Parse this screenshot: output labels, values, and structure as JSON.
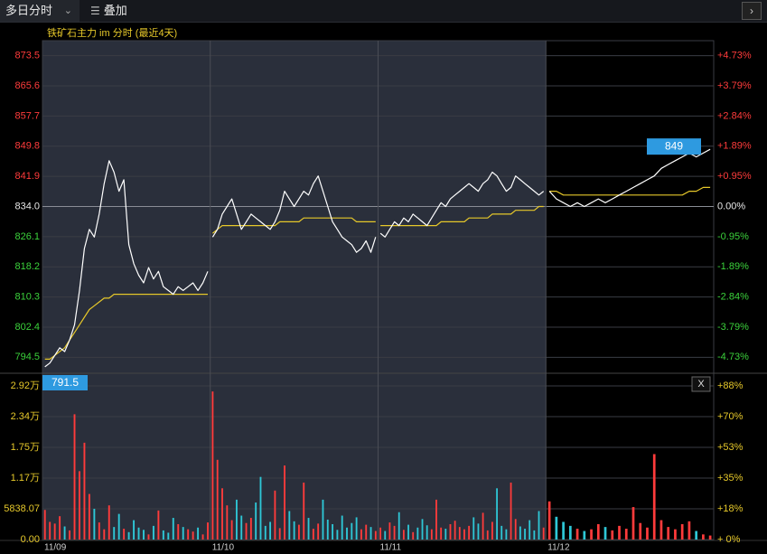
{
  "toolbar": {
    "view_mode": "多日分时",
    "overlay_label": "叠加"
  },
  "colors": {
    "up": "#ff3b3b",
    "down": "#3bd23b",
    "price_line": "#ffffff",
    "avg_line": "#e6c82a",
    "highlight_bg": "#2a2f3b",
    "badge": "#2e9ae0"
  },
  "chart_data": {
    "type": "line",
    "title": "铁矿石主力 im 分时 (最近4天)",
    "reference_price": 834.0,
    "current_price_label": "849",
    "low_price_label": "791.5",
    "close_button_label": "X",
    "price_axis": {
      "ylim": [
        790.55,
        877.45
      ],
      "left_ticks": [
        "873.5",
        "865.6",
        "857.7",
        "849.8",
        "841.9",
        "834.0",
        "826.1",
        "818.2",
        "810.3",
        "802.4",
        "794.5"
      ],
      "right_ticks": [
        "+4.73%",
        "+3.79%",
        "+2.84%",
        "+1.89%",
        "+0.95%",
        "0.00%",
        "-0.95%",
        "-1.89%",
        "-2.84%",
        "-3.79%",
        "-4.73%"
      ]
    },
    "volume_axis": {
      "ylim": [
        0,
        29200
      ],
      "left_ticks": [
        "2.92万",
        "2.34万",
        "1.75万",
        "1.17万",
        "5838.07",
        "0.00"
      ],
      "right_ticks": [
        "+88%",
        "+70%",
        "+53%",
        "+35%",
        "+18%",
        "+ 0%"
      ]
    },
    "days": [
      "11/09",
      "11/10",
      "11/11",
      "11/12"
    ],
    "series": [
      {
        "values": [
          [
            792,
            793,
            795,
            797,
            796,
            799,
            803,
            812,
            823,
            828,
            826,
            832,
            840,
            846,
            843,
            838,
            841,
            824,
            819,
            816,
            814,
            818,
            815,
            817,
            813,
            812,
            811,
            813,
            812,
            813,
            814,
            812,
            814,
            817
          ],
          [
            826,
            828,
            832,
            834,
            836,
            832,
            828,
            830,
            832,
            831,
            830,
            829,
            828,
            830,
            833,
            838,
            836,
            834,
            836,
            838,
            837,
            840,
            842,
            838,
            834,
            830,
            828,
            826,
            825,
            824,
            822,
            823,
            825,
            822,
            826
          ],
          [
            827,
            826,
            828,
            830,
            829,
            831,
            830,
            832,
            831,
            830,
            829,
            831,
            833,
            835,
            834,
            836,
            837,
            838,
            839,
            840,
            839,
            838,
            840,
            841,
            843,
            842,
            840,
            838,
            839,
            842,
            841,
            840,
            839,
            838,
            837,
            838
          ],
          [
            838,
            836,
            835,
            834,
            835,
            834,
            835,
            836,
            835,
            836,
            837,
            838,
            839,
            840,
            841,
            842,
            844,
            845,
            846,
            847,
            848,
            847,
            848,
            849
          ]
        ]
      },
      {
        "values": [
          [
            794,
            794,
            795,
            796,
            797,
            799,
            801,
            803,
            805,
            807,
            808,
            809,
            810,
            810,
            811,
            811,
            811,
            811,
            811,
            811,
            811,
            811,
            811,
            811,
            811,
            811,
            811,
            811,
            811,
            811,
            811,
            811,
            811,
            811
          ],
          [
            827,
            828,
            829,
            829,
            829,
            829,
            829,
            829,
            829,
            829,
            829,
            829,
            829,
            829,
            830,
            830,
            830,
            830,
            830,
            831,
            831,
            831,
            831,
            831,
            831,
            831,
            831,
            831,
            831,
            831,
            830,
            830,
            830,
            830,
            830
          ],
          [
            829,
            829,
            829,
            829,
            829,
            829,
            829,
            829,
            829,
            829,
            829,
            829,
            829,
            830,
            830,
            830,
            830,
            830,
            830,
            831,
            831,
            831,
            831,
            831,
            832,
            832,
            832,
            832,
            832,
            833,
            833,
            833,
            833,
            833,
            834,
            834
          ],
          [
            838,
            838,
            837,
            837,
            837,
            837,
            837,
            837,
            837,
            837,
            837,
            837,
            837,
            837,
            837,
            837,
            837,
            837,
            837,
            837,
            838,
            838,
            839,
            839
          ]
        ]
      }
    ],
    "volume_series": [
      {
        "values": [
          [
            5200,
            3100,
            2800,
            4100,
            2300,
            1600,
            22000,
            12000,
            17000,
            8000,
            5400,
            3000,
            1800,
            6000,
            2200,
            4500,
            1900,
            1300,
            3400,
            2100,
            1700,
            900,
            2400,
            5100,
            1600,
            1200,
            3800,
            2700,
            2200,
            1800,
            1400,
            2100,
            900,
            3000
          ],
          [
            26000,
            14000,
            9000,
            6000,
            3400,
            7000,
            4200,
            2900,
            3800,
            6500,
            11000,
            2400,
            3100,
            8600,
            2000,
            13000,
            5000,
            3200,
            2600,
            10000,
            3800,
            1900,
            2800,
            7000,
            3500,
            2700,
            1700,
            4200,
            2100,
            2900,
            3900,
            1800,
            2600,
            2200,
            1500
          ],
          [
            2100,
            1500,
            3000,
            2400,
            4800,
            1700,
            2600,
            1300,
            2100,
            3600,
            2500,
            1800,
            7000,
            2100,
            1900,
            2700,
            3300,
            2200,
            1800,
            2400,
            3900,
            2800,
            4700,
            1600,
            3100,
            9000,
            2400,
            1800,
            10000,
            3600,
            2300,
            1900,
            3400,
            1600,
            5000,
            2100
          ],
          [
            6700,
            4000,
            3100,
            2400,
            1900,
            1500,
            1800,
            2700,
            2200,
            1600,
            2400,
            1900,
            5700,
            2900,
            2100,
            15000,
            3400,
            2200,
            1800,
            2700,
            3200,
            1500,
            900,
            700
          ]
        ]
      }
    ]
  }
}
